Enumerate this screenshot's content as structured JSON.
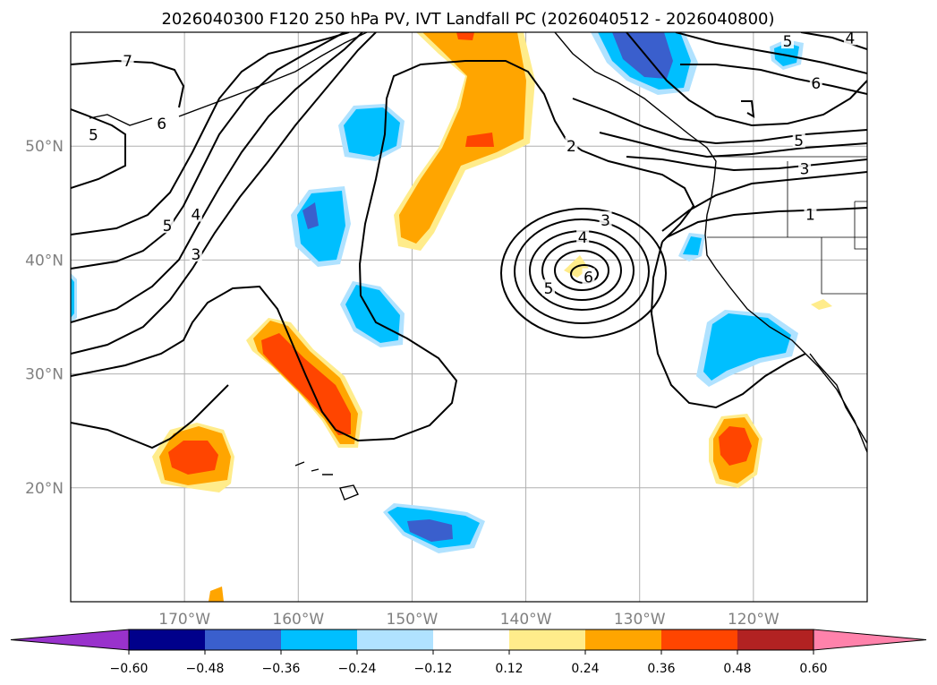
{
  "title": "2026040300 F120 250 hPa PV, IVT Landfall PC (2026040512 - 2026040800)",
  "map": {
    "lon_range": [
      -180,
      -110
    ],
    "lat_range": [
      10,
      60
    ],
    "lon_ticks": [
      {
        "lon": -170,
        "label": "170°W"
      },
      {
        "lon": -160,
        "label": "160°W"
      },
      {
        "lon": -150,
        "label": "150°W"
      },
      {
        "lon": -140,
        "label": "140°W"
      },
      {
        "lon": -130,
        "label": "130°W"
      },
      {
        "lon": -120,
        "label": "120°W"
      }
    ],
    "lat_ticks": [
      {
        "lat": 20,
        "label": "20°N"
      },
      {
        "lat": 30,
        "label": "30°N"
      },
      {
        "lat": 40,
        "label": "40°N"
      },
      {
        "lat": 50,
        "label": "50°N"
      }
    ],
    "contour_labels": [
      {
        "text": "7",
        "lon": -175,
        "lat": 57.5
      },
      {
        "text": "6",
        "lon": -172,
        "lat": 52
      },
      {
        "text": "5",
        "lon": -178,
        "lat": 51
      },
      {
        "text": "5",
        "lon": -171.5,
        "lat": 43
      },
      {
        "text": "4",
        "lon": -169,
        "lat": 44
      },
      {
        "text": "3",
        "lon": -169,
        "lat": 40.5
      },
      {
        "text": "2",
        "lon": -136,
        "lat": 50
      },
      {
        "text": "3",
        "lon": -133,
        "lat": 43.5
      },
      {
        "text": "4",
        "lon": -135,
        "lat": 42
      },
      {
        "text": "5",
        "lon": -138,
        "lat": 37.5
      },
      {
        "text": "6",
        "lon": -134.5,
        "lat": 38.5
      },
      {
        "text": "1",
        "lon": -115,
        "lat": 44
      },
      {
        "text": "3",
        "lon": -115.5,
        "lat": 48
      },
      {
        "text": "5",
        "lon": -116,
        "lat": 50.5
      },
      {
        "text": "6",
        "lon": -114.5,
        "lat": 55.5
      },
      {
        "text": "5",
        "lon": -117,
        "lat": 59.2
      },
      {
        "text": "4",
        "lon": -111.5,
        "lat": 59.5
      }
    ]
  },
  "colorbar": {
    "colors": [
      "#9932CC",
      "#00008B",
      "#3A5FCD",
      "#00BFFF",
      "#B0E2FF",
      "#FFFFFF",
      "#FFEC8B",
      "#FFA500",
      "#FF4500",
      "#B22222",
      "#FF82AB"
    ],
    "tick_labels": [
      "−0.60",
      "−0.48",
      "−0.36",
      "−0.24",
      "−0.12",
      "0.12",
      "0.24",
      "0.36",
      "0.48",
      "0.60"
    ]
  }
}
